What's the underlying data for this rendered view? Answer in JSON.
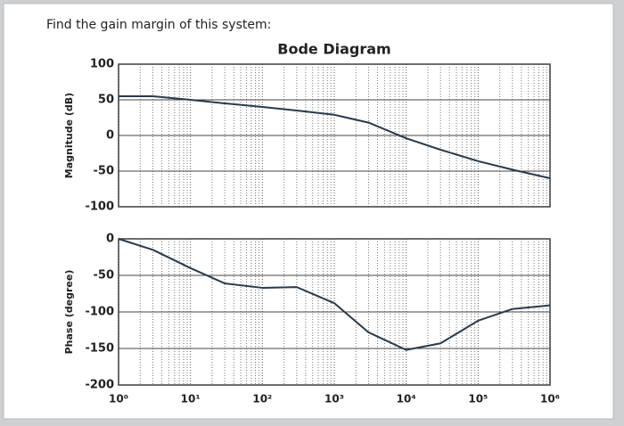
{
  "question": "Find the gain margin of this system:",
  "chart_data": [
    {
      "type": "line",
      "title": "Bode Diagram",
      "ylabel": "Magnitude (dB)",
      "xscale": "log",
      "grid": true,
      "color": "#2a3a4a",
      "x": [
        1,
        3,
        10,
        30,
        100,
        300,
        1000,
        3000,
        10000,
        30000,
        100000,
        300000,
        1000000
      ],
      "values": [
        55,
        55,
        50,
        45,
        40,
        35,
        29,
        18,
        -4,
        -20,
        -36,
        -48,
        -60
      ],
      "xlim": [
        1,
        1000000
      ],
      "xticks": [
        1,
        10,
        100,
        1000,
        10000,
        100000,
        1000000
      ],
      "ylim": [
        -100,
        100
      ],
      "yticks": [
        100,
        50,
        0,
        -50,
        -100
      ]
    },
    {
      "type": "line",
      "ylabel": "Phase (degree)",
      "xscale": "log",
      "grid": true,
      "color": "#2a3a4a",
      "x": [
        1,
        3,
        10,
        30,
        100,
        300,
        1000,
        3000,
        10000,
        30000,
        100000,
        300000,
        1000000
      ],
      "values": [
        0,
        -15,
        -40,
        -61,
        -67,
        -66,
        -88,
        -128,
        -152,
        -143,
        -112,
        -96,
        -91
      ],
      "xlim": [
        1,
        1000000
      ],
      "xticks": [
        {
          "value": 1,
          "label": "10⁰"
        },
        {
          "value": 10,
          "label": "10¹"
        },
        {
          "value": 100,
          "label": "10²"
        },
        {
          "value": 1000,
          "label": "10³"
        },
        {
          "value": 10000,
          "label": "10⁴"
        },
        {
          "value": 100000,
          "label": "10⁵"
        },
        {
          "value": 1000000,
          "label": "10⁶"
        }
      ],
      "ylim": [
        -200,
        0
      ],
      "yticks": [
        0,
        -50,
        -100,
        -150,
        -200
      ]
    }
  ]
}
